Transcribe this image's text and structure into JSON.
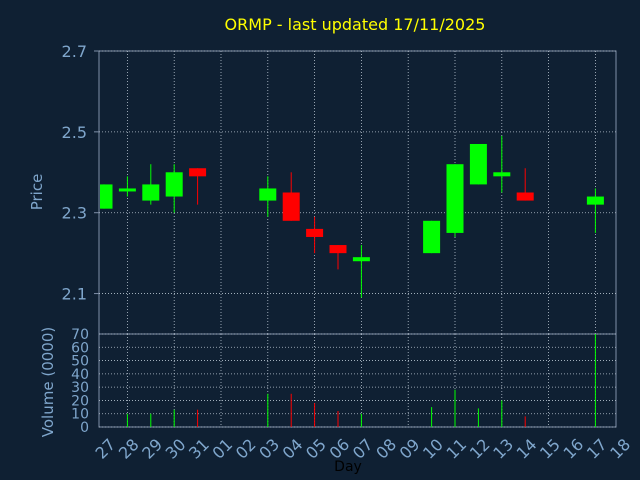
{
  "colors": {
    "background": "#0f2033",
    "title": "#ffff00",
    "axis_text": "#7fa6cc",
    "frame": "#7f8fa8",
    "grid": "#b8c4d0",
    "up": "#00ff00",
    "down": "#ff0000",
    "day_label": "#000000"
  },
  "chart_data": {
    "type": "candlestick",
    "title": "ORMP - last updated 17/11/2025",
    "xlabel": "Day",
    "price_panel": {
      "ylabel": "Price",
      "ylim": [
        2.0,
        2.7
      ],
      "yticks": [
        "2.7",
        "2.5",
        "2.3",
        "2.1"
      ],
      "ytick_values": [
        2.7,
        2.5,
        2.3,
        2.1
      ],
      "grid": true
    },
    "volume_panel": {
      "ylabel": "Volume (0000)",
      "ylim": [
        0,
        70
      ],
      "yticks": [
        "70",
        "60",
        "50",
        "40",
        "30",
        "20",
        "10",
        "0"
      ],
      "ytick_values": [
        70,
        60,
        50,
        40,
        30,
        20,
        10,
        0
      ],
      "grid": true
    },
    "x_ticks": [
      "27",
      "28",
      "29",
      "30",
      "31",
      "01",
      "02",
      "03",
      "04",
      "05",
      "06",
      "07",
      "08",
      "09",
      "10",
      "11",
      "12",
      "13",
      "14",
      "15",
      "16",
      "17",
      "18"
    ],
    "candles": [
      {
        "day": "27",
        "open": 2.31,
        "high": 2.37,
        "low": 2.31,
        "close": 2.37,
        "volume": 0
      },
      {
        "day": "28",
        "open": 2.355,
        "high": 2.39,
        "low": 2.34,
        "close": 2.36,
        "volume": 10
      },
      {
        "day": "29",
        "open": 2.33,
        "high": 2.42,
        "low": 2.32,
        "close": 2.37,
        "volume": 10
      },
      {
        "day": "30",
        "open": 2.34,
        "high": 2.42,
        "low": 2.3,
        "close": 2.4,
        "volume": 13
      },
      {
        "day": "31",
        "open": 2.41,
        "high": 2.41,
        "low": 2.32,
        "close": 2.39,
        "volume": 13
      },
      {
        "day": "03",
        "open": 2.33,
        "high": 2.39,
        "low": 2.29,
        "close": 2.36,
        "volume": 25
      },
      {
        "day": "04",
        "open": 2.35,
        "high": 2.4,
        "low": 2.28,
        "close": 2.28,
        "volume": 25
      },
      {
        "day": "05",
        "open": 2.26,
        "high": 2.29,
        "low": 2.2,
        "close": 2.24,
        "volume": 18
      },
      {
        "day": "06",
        "open": 2.22,
        "high": 2.22,
        "low": 2.16,
        "close": 2.2,
        "volume": 12
      },
      {
        "day": "07",
        "open": 2.18,
        "high": 2.22,
        "low": 2.09,
        "close": 2.19,
        "volume": 10
      },
      {
        "day": "10",
        "open": 2.2,
        "high": 2.28,
        "low": 2.2,
        "close": 2.28,
        "volume": 15
      },
      {
        "day": "11",
        "open": 2.25,
        "high": 2.42,
        "low": 2.24,
        "close": 2.42,
        "volume": 28
      },
      {
        "day": "12",
        "open": 2.37,
        "high": 2.47,
        "low": 2.37,
        "close": 2.47,
        "volume": 14
      },
      {
        "day": "13",
        "open": 2.39,
        "high": 2.49,
        "low": 2.35,
        "close": 2.4,
        "volume": 20
      },
      {
        "day": "14",
        "open": 2.35,
        "high": 2.41,
        "low": 2.33,
        "close": 2.33,
        "volume": 8
      },
      {
        "day": "17",
        "open": 2.32,
        "high": 2.36,
        "low": 2.25,
        "close": 2.34,
        "volume": 70
      }
    ]
  }
}
